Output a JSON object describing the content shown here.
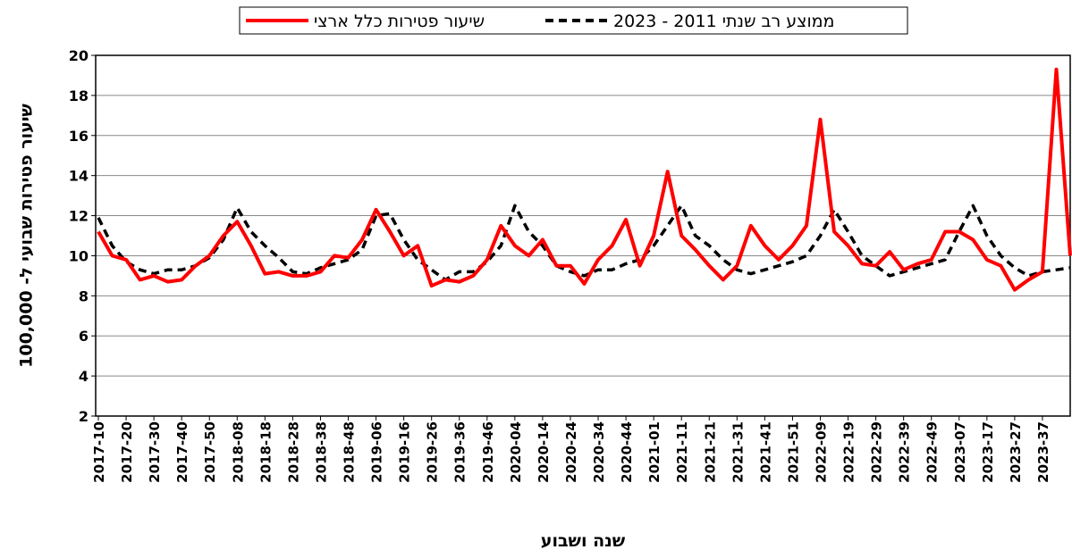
{
  "chart_data": {
    "type": "line",
    "xlabel": "שנה ושבוע",
    "ylabel": "שיעור פטירות שבועי ל- 100,000",
    "categories": [
      "2017-10",
      null,
      "2017-20",
      null,
      "2017-30",
      null,
      "2017-40",
      null,
      "2017-50",
      null,
      "2018-08",
      null,
      "2018-18",
      null,
      "2018-28",
      null,
      "2018-38",
      null,
      "2018-48",
      null,
      "2019-06",
      null,
      "2019-16",
      null,
      "2019-26",
      null,
      "2019-36",
      null,
      "2019-46",
      null,
      "2020-04",
      null,
      "2020-14",
      null,
      "2020-24",
      null,
      "2020-34",
      null,
      "2020-44",
      null,
      "2021-01",
      null,
      "2021-11",
      null,
      "2021-21",
      null,
      "2021-31",
      null,
      "2021-41",
      null,
      "2021-51",
      null,
      "2022-09",
      null,
      "2022-19",
      null,
      "2022-29",
      null,
      "2022-39",
      null,
      "2022-49",
      null,
      "2023-07",
      null,
      "2023-17",
      null,
      "2023-27",
      null,
      "2023-37",
      null,
      null
    ],
    "series": [
      {
        "name": "שיעור פטירות כלל ארצי",
        "color": "#ff0000",
        "dash": false,
        "values": [
          11.2,
          10,
          9.8,
          8.8,
          9,
          8.7,
          8.8,
          9.5,
          10,
          11,
          11.7,
          10.5,
          9.1,
          9.2,
          9,
          9,
          9.2,
          10,
          9.9,
          10.8,
          12.3,
          11.2,
          10,
          10.5,
          8.5,
          8.8,
          8.7,
          9,
          9.8,
          11.5,
          10.5,
          10,
          10.8,
          9.5,
          9.5,
          8.6,
          9.8,
          10.5,
          11.8,
          9.5,
          11,
          14.2,
          11,
          10.3,
          9.5,
          8.8,
          9.5,
          11.5,
          10.5,
          9.8,
          10.5,
          11.5,
          16.8,
          11.2,
          10.5,
          9.6,
          9.5,
          10.2,
          9.3,
          9.6,
          9.8,
          11.2,
          11.2,
          10.8,
          9.8,
          9.5,
          8.3,
          8.8,
          9.2,
          19.3,
          10
        ]
      },
      {
        "name": "ממוצע רב שנתי 2011 - 2023",
        "color": "#000000",
        "dash": true,
        "values": [
          11.9,
          10.5,
          9.7,
          9.3,
          9.1,
          9.3,
          9.3,
          9.5,
          9.9,
          10.8,
          12.4,
          11.2,
          10.5,
          9.9,
          9.2,
          9.1,
          9.4,
          9.6,
          9.8,
          10.3,
          12,
          12.1,
          10.8,
          9.8,
          9.3,
          8.8,
          9.2,
          9.2,
          9.7,
          10.5,
          12.5,
          11.2,
          10.5,
          9.5,
          9.2,
          9,
          9.3,
          9.3,
          9.6,
          9.8,
          10.5,
          11.5,
          12.5,
          11,
          10.5,
          9.8,
          9.3,
          9.1,
          9.3,
          9.5,
          9.7,
          10,
          11,
          12.3,
          11.2,
          10,
          9.5,
          9,
          9.2,
          9.4,
          9.6,
          9.8,
          11.2,
          12.5,
          11,
          10,
          9.4,
          9,
          9.2,
          9.3,
          9.4
        ]
      }
    ],
    "ylim": [
      2,
      20
    ],
    "yticks": [
      2,
      4,
      6,
      8,
      10,
      12,
      14,
      16,
      18,
      20
    ],
    "grid": true,
    "legend": "top"
  }
}
